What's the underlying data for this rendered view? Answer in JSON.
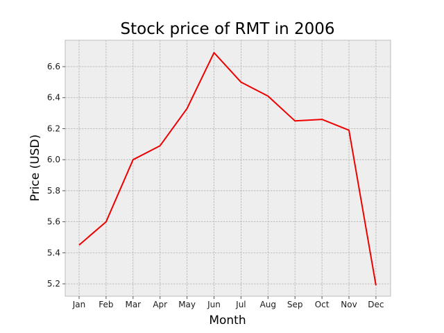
{
  "chart_data": {
    "type": "line",
    "title": "Stock price of RMT in 2006",
    "xlabel": "Month",
    "ylabel": "Price (USD)",
    "categories": [
      "Jan",
      "Feb",
      "Mar",
      "Apr",
      "May",
      "Jun",
      "Jul",
      "Aug",
      "Sep",
      "Oct",
      "Nov",
      "Dec"
    ],
    "series": [
      {
        "values": [
          5.45,
          5.6,
          6.0,
          6.09,
          6.33,
          6.69,
          6.5,
          6.41,
          6.25,
          6.26,
          6.19,
          5.19
        ],
        "color": "#ee0000"
      }
    ],
    "ylim": [
      5.12,
      6.77
    ],
    "yticks": [
      5.2,
      5.4,
      5.6,
      5.8,
      6.0,
      6.2,
      6.4,
      6.6
    ],
    "ytick_labels": [
      "5.2",
      "5.4",
      "5.6",
      "5.8",
      "6.0",
      "6.2",
      "6.4",
      "6.6"
    ],
    "grid": true,
    "grid_style": "dashed",
    "background_color": "#eeeeee",
    "frame_color": "#bcbcbc",
    "grid_color": "#b0b0b0"
  }
}
